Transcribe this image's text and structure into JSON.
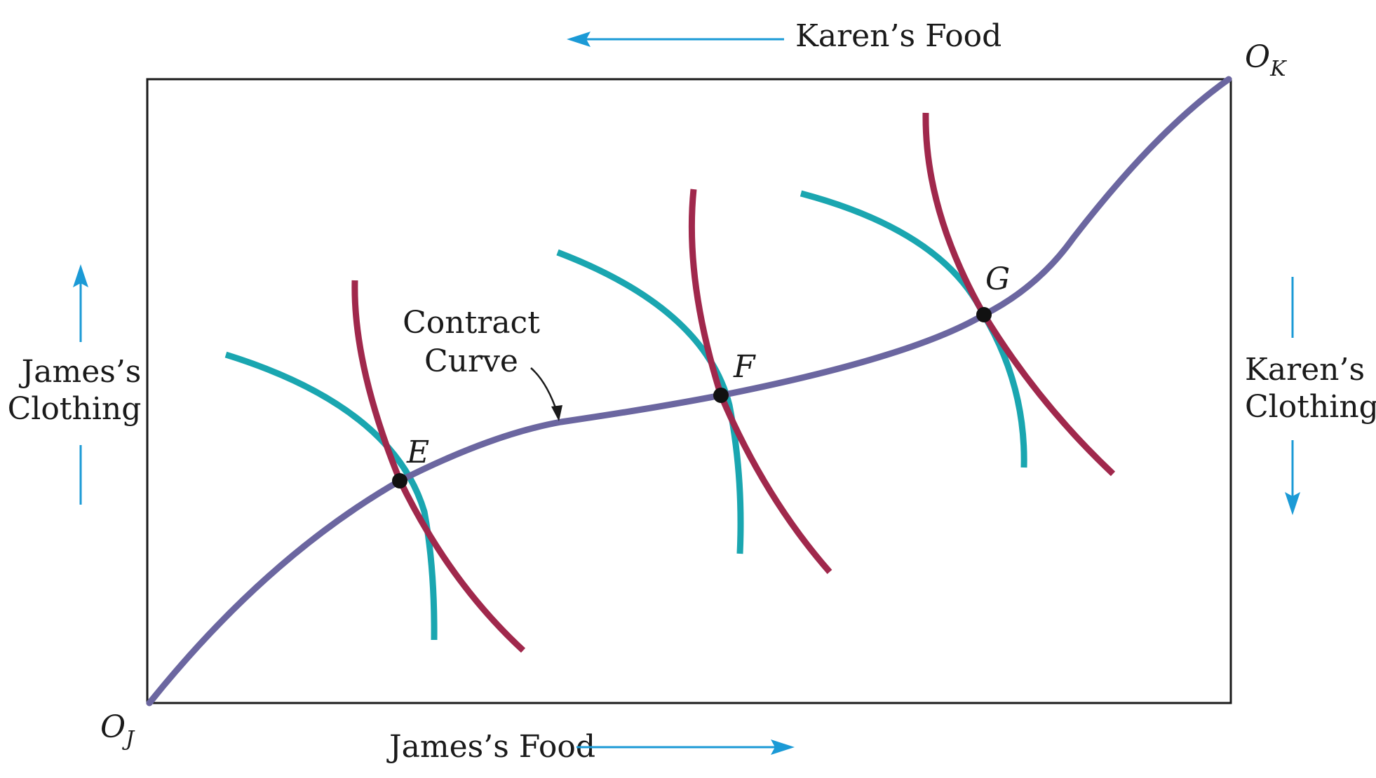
{
  "diagram": {
    "origin_james": "O",
    "origin_james_sub": "J",
    "origin_karen": "O",
    "origin_karen_sub": "K",
    "top_axis_label": "Karen’s Food",
    "bottom_axis_label": "James’s Food",
    "left_axis_label_line1": "James’s",
    "left_axis_label_line2": "Clothing",
    "right_axis_label_line1": "Karen’s",
    "right_axis_label_line2": "Clothing",
    "contract_curve_label_line1": "Contract",
    "contract_curve_label_line2": "Curve",
    "points": [
      "E",
      "F",
      "G"
    ]
  },
  "colors": {
    "box": "#1a1a1a",
    "contract_curve": "#6b66a0",
    "james_indifference": "#1aa6b0",
    "karen_indifference": "#a0284c",
    "axis_arrow": "#1b9ad6",
    "point": "#111111"
  }
}
